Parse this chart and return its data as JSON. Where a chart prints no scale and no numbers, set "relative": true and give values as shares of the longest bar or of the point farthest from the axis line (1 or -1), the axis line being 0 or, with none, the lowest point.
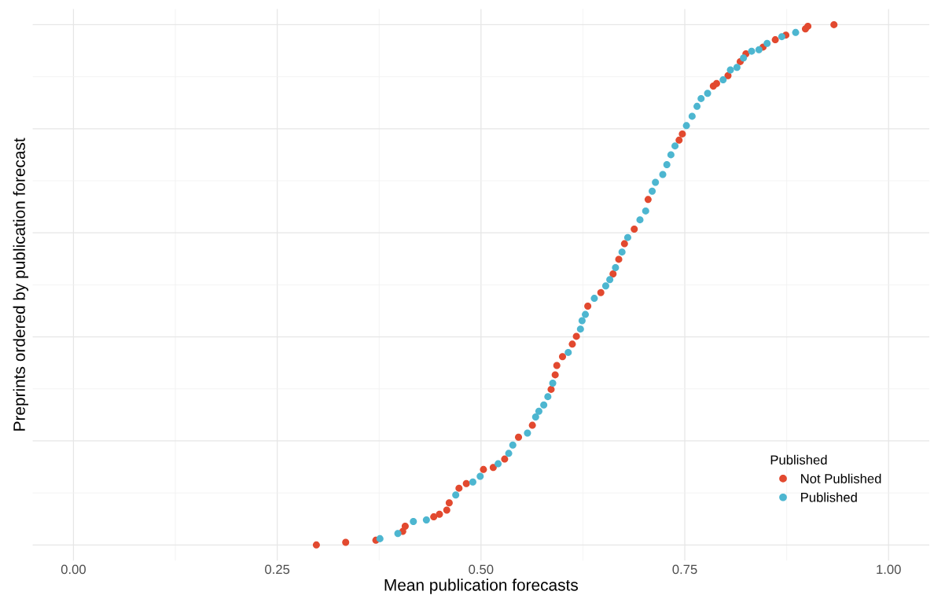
{
  "chart_data": {
    "type": "scatter",
    "xlabel": "Mean publication forecasts",
    "ylabel": "Preprints ordered by publication forecast",
    "legend_title": "Published",
    "legend": "lower right",
    "grid": true,
    "relative": true,
    "marker": "circle",
    "xlim": [
      -0.05,
      1.05
    ],
    "xticks": [
      {
        "value": 0,
        "label": "0.00"
      },
      {
        "value": 0.25,
        "label": "0.25"
      },
      {
        "value": 0.5,
        "label": "0.50"
      },
      {
        "value": 0.75,
        "label": "0.75"
      },
      {
        "value": 1,
        "label": "1.00"
      }
    ],
    "series": [
      {
        "name": "Not Published",
        "color": "#e2492f",
        "x": [
          0.298,
          0.334,
          0.371,
          0.404,
          0.407,
          0.442,
          0.449,
          0.458,
          0.461,
          0.473,
          0.482,
          0.503,
          0.515,
          0.529,
          0.546,
          0.563,
          0.586,
          0.591,
          0.593,
          0.6,
          0.612,
          0.617,
          0.631,
          0.647,
          0.662,
          0.669,
          0.676,
          0.688,
          0.705,
          0.743,
          0.747,
          0.785,
          0.789,
          0.803,
          0.818,
          0.825,
          0.846,
          0.861,
          0.874,
          0.898,
          0.901,
          0.933
        ],
        "values": [
          0.0,
          0.005,
          0.009,
          0.026,
          0.036,
          0.054,
          0.059,
          0.067,
          0.081,
          0.109,
          0.118,
          0.145,
          0.149,
          0.165,
          0.207,
          0.23,
          0.299,
          0.327,
          0.345,
          0.362,
          0.386,
          0.401,
          0.459,
          0.485,
          0.521,
          0.549,
          0.579,
          0.607,
          0.664,
          0.778,
          0.79,
          0.882,
          0.887,
          0.902,
          0.929,
          0.944,
          0.957,
          0.971,
          0.98,
          0.992,
          0.997,
          1.0
        ]
      },
      {
        "name": "Published",
        "color": "#4db6d0",
        "x": [
          0.376,
          0.398,
          0.417,
          0.433,
          0.469,
          0.49,
          0.499,
          0.521,
          0.534,
          0.539,
          0.557,
          0.567,
          0.571,
          0.577,
          0.582,
          0.588,
          0.607,
          0.622,
          0.624,
          0.628,
          0.639,
          0.653,
          0.658,
          0.665,
          0.673,
          0.68,
          0.695,
          0.702,
          0.71,
          0.714,
          0.723,
          0.728,
          0.733,
          0.738,
          0.752,
          0.759,
          0.765,
          0.77,
          0.778,
          0.797,
          0.806,
          0.814,
          0.822,
          0.832,
          0.841,
          0.851,
          0.869,
          0.886
        ],
        "values": [
          0.012,
          0.022,
          0.045,
          0.048,
          0.096,
          0.121,
          0.132,
          0.156,
          0.176,
          0.192,
          0.215,
          0.246,
          0.257,
          0.269,
          0.285,
          0.311,
          0.37,
          0.415,
          0.431,
          0.443,
          0.474,
          0.498,
          0.51,
          0.533,
          0.563,
          0.591,
          0.625,
          0.642,
          0.68,
          0.697,
          0.712,
          0.731,
          0.75,
          0.767,
          0.806,
          0.824,
          0.843,
          0.858,
          0.868,
          0.894,
          0.913,
          0.918,
          0.936,
          0.949,
          0.952,
          0.964,
          0.977,
          0.985
        ]
      }
    ]
  }
}
